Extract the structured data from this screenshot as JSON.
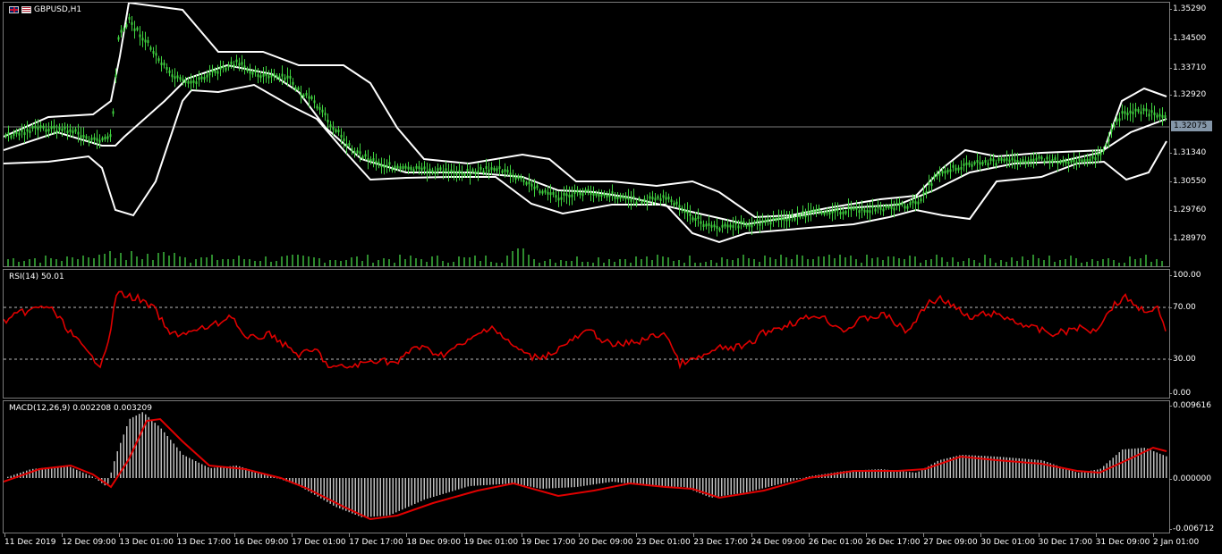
{
  "window": {
    "symbol_title": "GBPUSD,H1",
    "flags": [
      "uk-flag-icon",
      "us-flag-icon"
    ]
  },
  "panes": {
    "main": {
      "y_ticks": [
        "1.35290",
        "1.34500",
        "1.33710",
        "1.32920",
        "1.32075",
        "1.31340",
        "1.30550",
        "1.29760",
        "1.28970"
      ],
      "current_price": "1.32075",
      "candle_color": "#3fd23f",
      "bands_color": "#ffffff",
      "volume_color": "#2e8b2e"
    },
    "rsi": {
      "label": "RSI(14) 50.01",
      "y_ticks": [
        "100.00",
        "70.00",
        "30.00",
        "0.00"
      ],
      "line_color": "#e00000"
    },
    "macd": {
      "label": "MACD(12,26,9) 0.002208 0.003209",
      "y_ticks": [
        "0.009616",
        "0.000000",
        "-0.006712"
      ],
      "hist_color": "#bdbdbd",
      "signal_color": "#e00000"
    }
  },
  "x_axis": {
    "labels": [
      "11 Dec 2019",
      "12 Dec 09:00",
      "13 Dec 01:00",
      "13 Dec 17:00",
      "16 Dec 09:00",
      "17 Dec 01:00",
      "17 Dec 17:00",
      "18 Dec 09:00",
      "19 Dec 01:00",
      "19 Dec 17:00",
      "20 Dec 09:00",
      "23 Dec 01:00",
      "23 Dec 17:00",
      "24 Dec 09:00",
      "26 Dec 01:00",
      "26 Dec 17:00",
      "27 Dec 09:00",
      "30 Dec 01:00",
      "30 Dec 17:00",
      "31 Dec 09:00",
      "2 Jan 01:00"
    ]
  }
}
